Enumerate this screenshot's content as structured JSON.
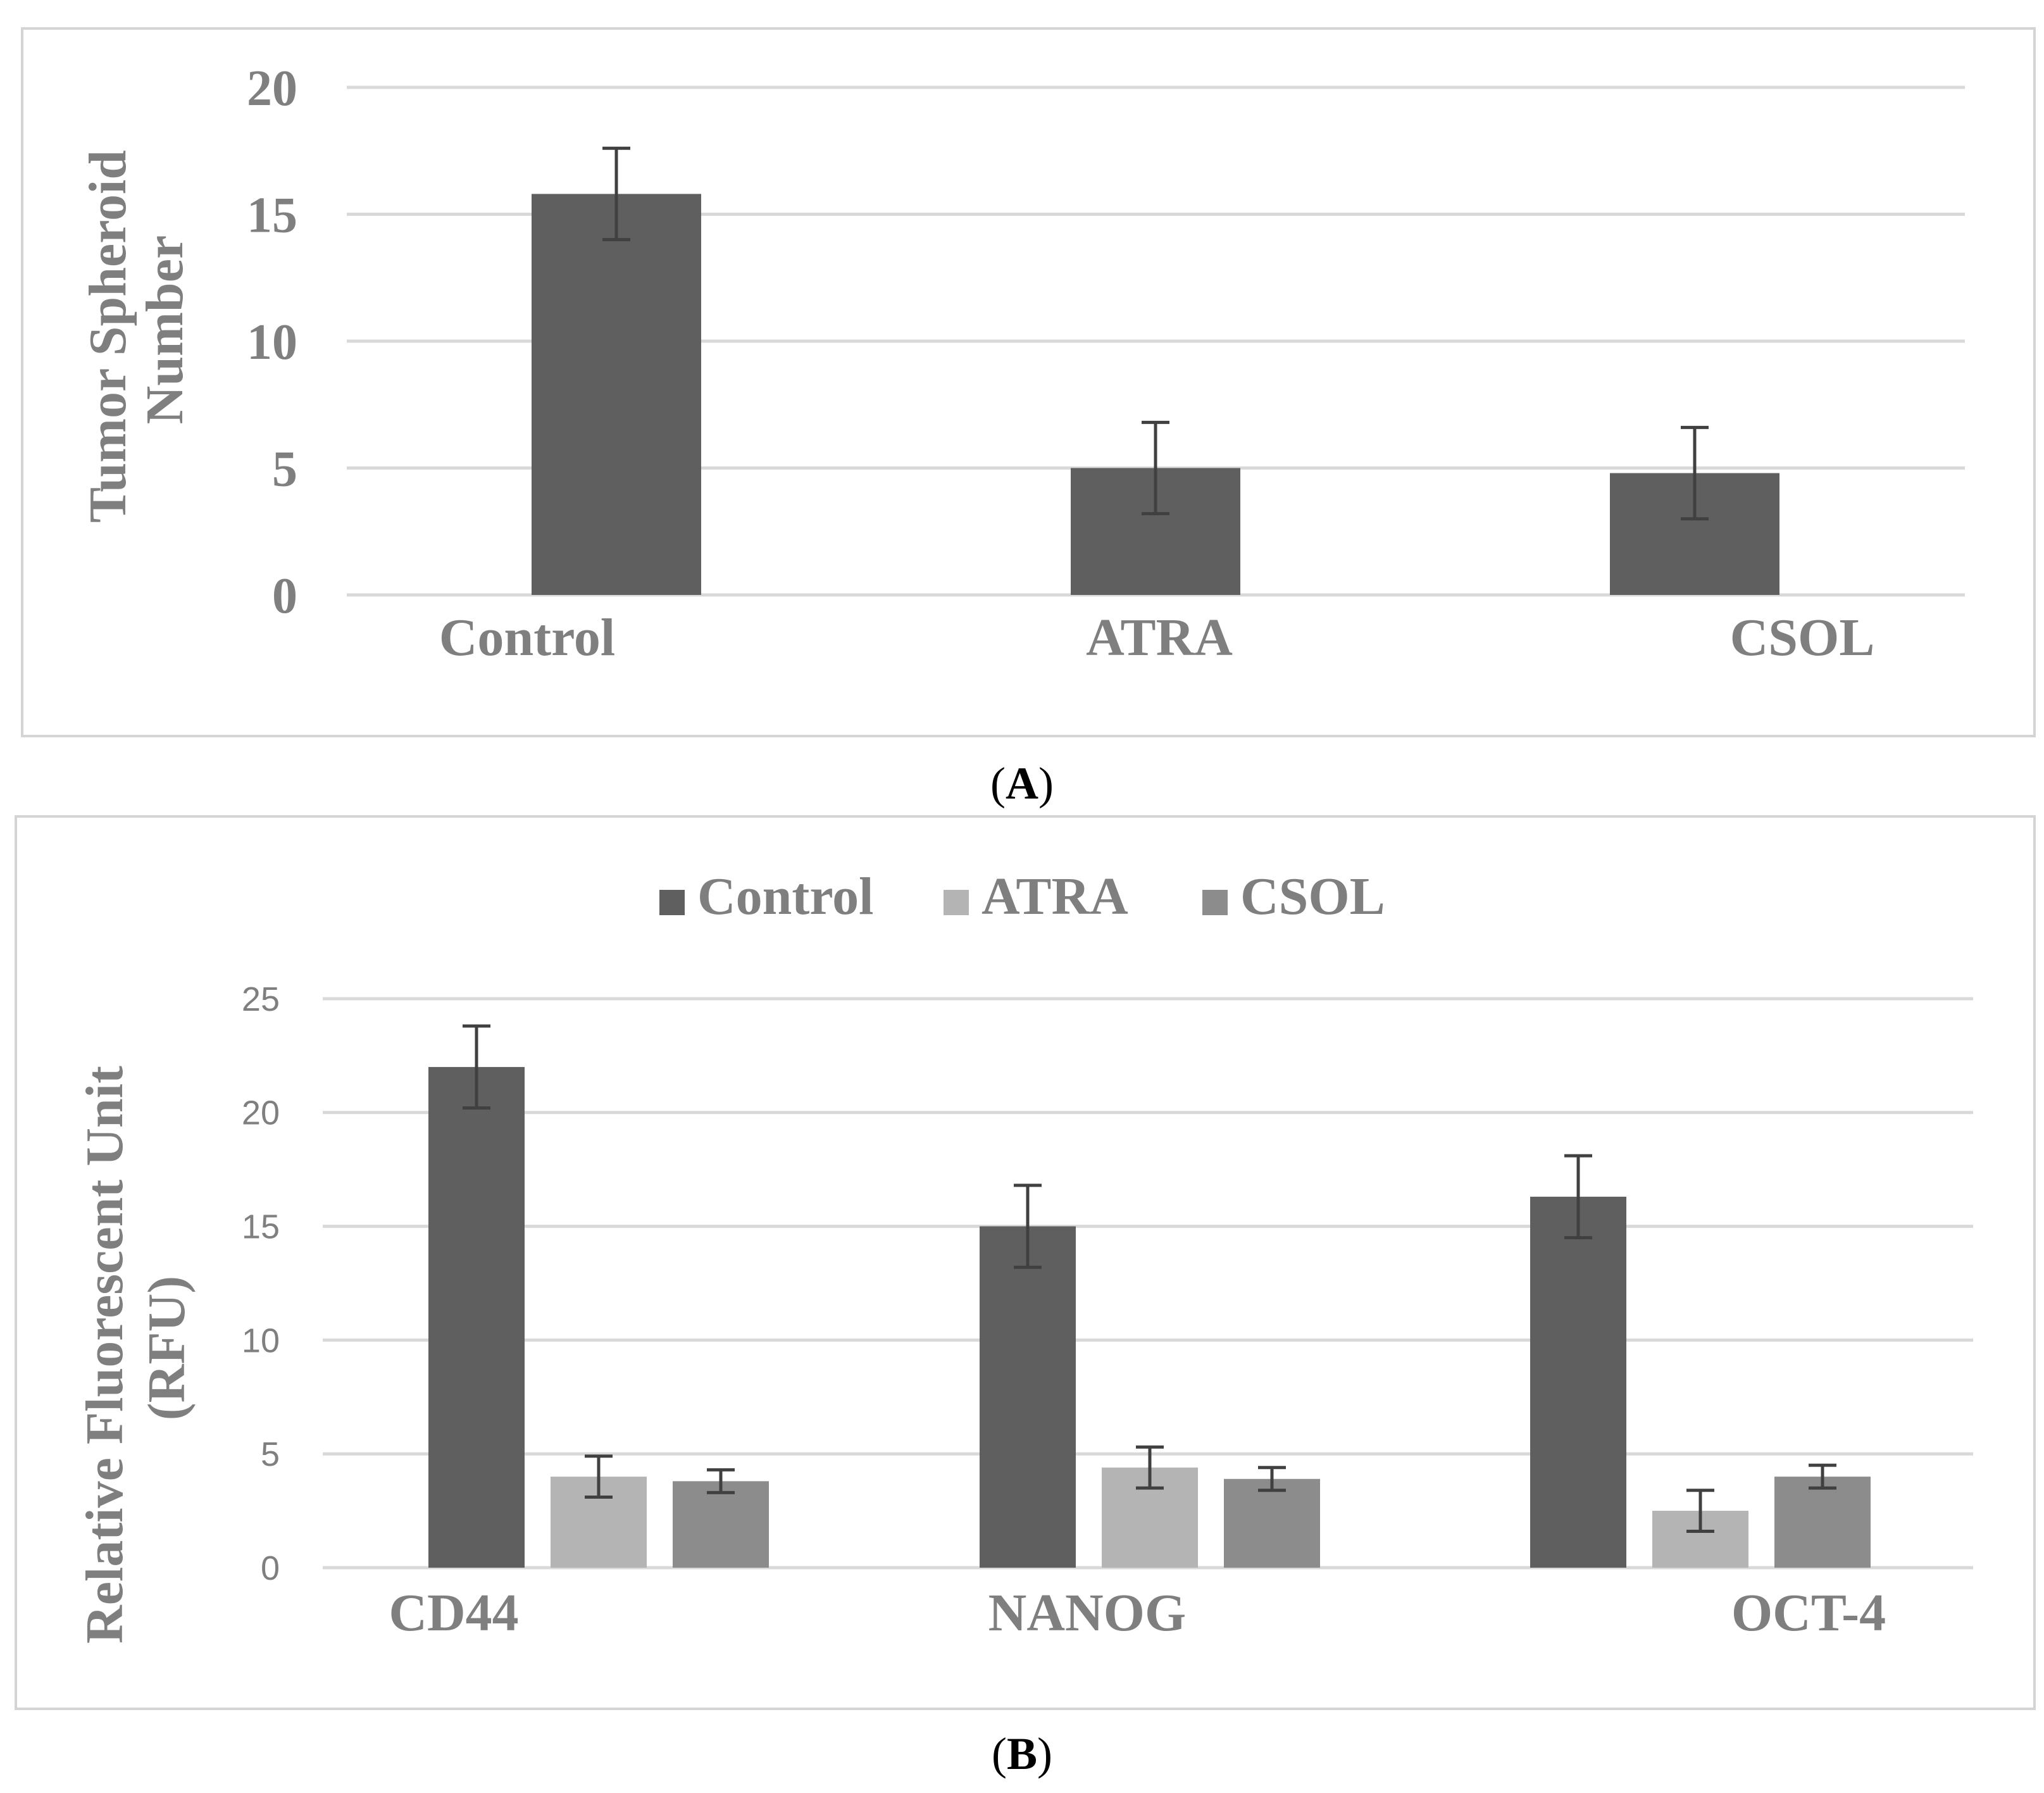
{
  "colors": {
    "frame": "#d4d4d4",
    "grid": "#d9d9d9",
    "text": "#7f7f7f",
    "caption": "#000000",
    "error_bar": "#404040"
  },
  "chart_data": [
    {
      "type": "bar",
      "panel_label": "A",
      "title": "",
      "xlabel": "",
      "ylabel": "Tumor Spheroid Number",
      "ylabel_lines": [
        "Tumor Spheroid",
        "Number"
      ],
      "ylim": [
        0,
        20
      ],
      "yticks": [
        "0",
        "5",
        "10",
        "15",
        "20"
      ],
      "grid": true,
      "categories": [
        "Control",
        "ATRA",
        "CSOL"
      ],
      "series": [
        {
          "name": "Tumor Spheroid Number",
          "color": "#5f5f5f",
          "values": [
            15.8,
            5.0,
            4.8
          ],
          "errors": [
            1.8,
            1.8,
            1.8
          ]
        }
      ]
    },
    {
      "type": "bar",
      "panel_label": "B",
      "title": "",
      "xlabel": "",
      "ylabel": "Relative Fluorescent Unit (RFU)",
      "ylabel_lines": [
        "Relative Fluorescent Unit",
        "(RFU)"
      ],
      "ylim": [
        0,
        25
      ],
      "yticks": [
        "0",
        "5",
        "10",
        "15",
        "20",
        "25"
      ],
      "grid": true,
      "legend_position": "top-center",
      "categories": [
        "CD44",
        "NANOG",
        "OCT-4"
      ],
      "series": [
        {
          "name": "Control",
          "color": "#5f5f5f",
          "values": [
            22.0,
            15.0,
            16.3
          ],
          "errors": [
            1.8,
            1.8,
            1.8
          ]
        },
        {
          "name": "ATRA",
          "color": "#b4b4b4",
          "values": [
            4.0,
            4.4,
            2.5
          ],
          "errors": [
            0.9,
            0.9,
            0.9
          ]
        },
        {
          "name": "CSOL",
          "color": "#8c8c8c",
          "values": [
            3.8,
            3.9,
            4.0
          ],
          "errors": [
            0.5,
            0.5,
            0.5
          ]
        }
      ]
    }
  ]
}
